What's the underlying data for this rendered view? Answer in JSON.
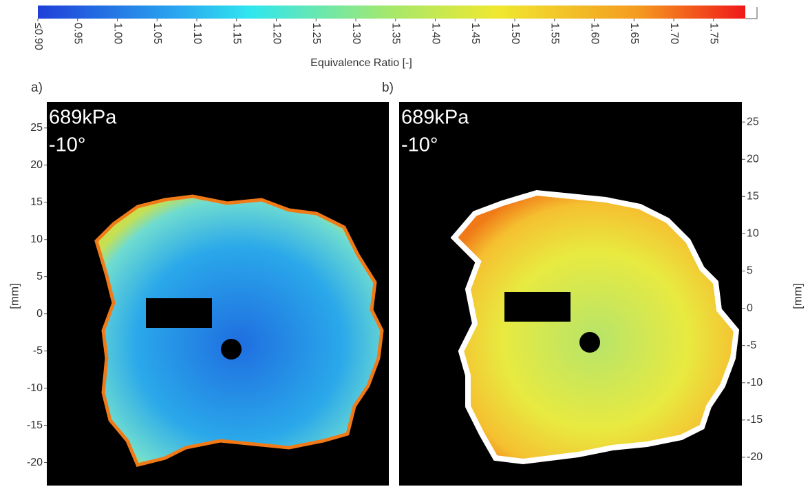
{
  "colorbar": {
    "label": "Equivalence Ratio [-]",
    "clim": [
      0.9,
      1.79
    ],
    "ticks": [
      {
        "value": 0.9,
        "label": "≤0.90"
      },
      0.95,
      {
        "value": 1,
        "label": "1.00"
      },
      1.05,
      {
        "value": 1.1,
        "label": "1.10"
      },
      1.15,
      {
        "value": 1.2,
        "label": "1.20"
      },
      1.25,
      {
        "value": 1.3,
        "label": "1.30"
      },
      1.35,
      {
        "value": 1.4,
        "label": "1.40"
      },
      1.45,
      {
        "value": 1.5,
        "label": "1.50"
      },
      1.55,
      {
        "value": 1.6,
        "label": "1.60"
      },
      1.65,
      {
        "value": 1.7,
        "label": "1.70"
      },
      1.75
    ]
  },
  "panels": [
    {
      "label": "a)",
      "pressure": "689kPa",
      "angle": "-10°",
      "y_axis_label": "[mm]",
      "ylim": [
        -23.1,
        28.5
      ],
      "yticks": [
        -20,
        -15,
        -10,
        -5,
        0,
        5,
        10,
        15,
        20,
        25
      ]
    },
    {
      "label": "b)",
      "pressure": "689kPa",
      "angle": "-10°",
      "y_axis_label": "[mm]",
      "ylim": [
        -23.8,
        27.7
      ],
      "yticks": [
        -20,
        -15,
        -10,
        -5,
        0,
        5,
        10,
        15,
        20,
        25
      ]
    }
  ]
}
